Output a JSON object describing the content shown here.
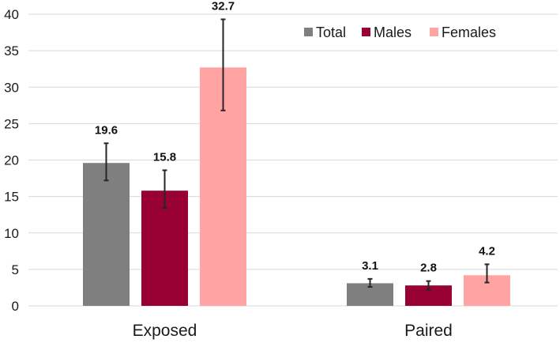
{
  "chart_data": {
    "type": "bar",
    "categories": [
      "Exposed",
      "Paired"
    ],
    "series": [
      {
        "name": "Total",
        "color": "#7f7f7f",
        "values": [
          19.6,
          3.1
        ],
        "error_low": [
          17.2,
          2.6
        ],
        "error_high": [
          22.3,
          3.7
        ]
      },
      {
        "name": "Males",
        "color": "#990033",
        "values": [
          15.8,
          2.8
        ],
        "error_low": [
          13.4,
          2.2
        ],
        "error_high": [
          18.6,
          3.4
        ]
      },
      {
        "name": "Females",
        "color": "#ffa3a3",
        "values": [
          32.7,
          4.2
        ],
        "error_low": [
          26.8,
          3.2
        ],
        "error_high": [
          39.3,
          5.7
        ]
      }
    ],
    "data_labels": [
      [
        "19.6",
        "3.1"
      ],
      [
        "15.8",
        "2.8"
      ],
      [
        "32.7",
        "4.2"
      ]
    ],
    "ylim": [
      0,
      40
    ],
    "y_ticks": [
      0,
      5,
      10,
      15,
      20,
      25,
      30,
      35,
      40
    ],
    "grid": true,
    "legend_position": "top-right",
    "title": "",
    "xlabel": "",
    "ylabel": ""
  }
}
